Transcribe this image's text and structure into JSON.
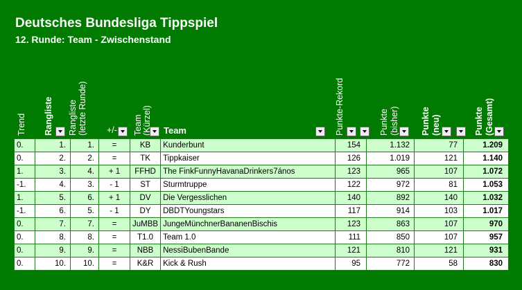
{
  "title": "Deutsches Bundesliga Tippspiel",
  "subtitle": "12. Runde: Team - Zwischenstand",
  "headers": {
    "trend": "Trend",
    "rangliste": "Rangliste",
    "rangliste_letzte_1": "Rangliste",
    "rangliste_letzte_2": "(letzte Runde)",
    "plusminus": "+/-",
    "team_kurz_1": "Team",
    "team_kurz_2": "(Kürzel)",
    "team": "Team",
    "rekord": "Punkte-Rekord",
    "punkte_bisher_1": "Punkte",
    "punkte_bisher_2": "(bisher)",
    "punkte_neu_1": "Punkte",
    "punkte_neu_2": "(neu)",
    "punkte_gesamt_1": "Punkte",
    "punkte_gesamt_2": "(Gesamt)"
  },
  "rows": [
    {
      "trend": "0.",
      "rang": "1.",
      "rang_alt": "1.",
      "diff": "=",
      "kurz": "KB",
      "team": "Kunderbunt",
      "rekord": "154",
      "bisher": "1.132",
      "neu": "77",
      "gesamt": "1.209"
    },
    {
      "trend": "0.",
      "rang": "2.",
      "rang_alt": "2.",
      "diff": "=",
      "kurz": "TK",
      "team": "Tippkaiser",
      "rekord": "126",
      "bisher": "1.019",
      "neu": "121",
      "gesamt": "1.140"
    },
    {
      "trend": "1.",
      "rang": "3.",
      "rang_alt": "4.",
      "diff": "+ 1",
      "kurz": "FFHD",
      "team": "The FinkFunnyHavanaDrinkers7ános",
      "rekord": "123",
      "bisher": "965",
      "neu": "107",
      "gesamt": "1.072"
    },
    {
      "trend": "-1.",
      "rang": "4.",
      "rang_alt": "3.",
      "diff": "- 1",
      "kurz": "ST",
      "team": "Sturmtruppe",
      "rekord": "122",
      "bisher": "972",
      "neu": "81",
      "gesamt": "1.053"
    },
    {
      "trend": "1.",
      "rang": "5.",
      "rang_alt": "6.",
      "diff": "+ 1",
      "kurz": "DV",
      "team": "Die Vergesslichen",
      "rekord": "140",
      "bisher": "892",
      "neu": "140",
      "gesamt": "1.032"
    },
    {
      "trend": "-1.",
      "rang": "6.",
      "rang_alt": "5.",
      "diff": "- 1",
      "kurz": "DY",
      "team": "DBDTYoungstars",
      "rekord": "117",
      "bisher": "914",
      "neu": "103",
      "gesamt": "1.017"
    },
    {
      "trend": "0.",
      "rang": "7.",
      "rang_alt": "7.",
      "diff": "=",
      "kurz": "JuMBB",
      "team": "JungeMünchnerBananenBischis",
      "rekord": "123",
      "bisher": "863",
      "neu": "107",
      "gesamt": "970"
    },
    {
      "trend": "0.",
      "rang": "8.",
      "rang_alt": "8.",
      "diff": "=",
      "kurz": "T1.0",
      "team": "Team 1.0",
      "rekord": "111",
      "bisher": "850",
      "neu": "107",
      "gesamt": "957"
    },
    {
      "trend": "0.",
      "rang": "9.",
      "rang_alt": "9.",
      "diff": "=",
      "kurz": "NBB",
      "team": "NessiBubenBande",
      "rekord": "121",
      "bisher": "810",
      "neu": "121",
      "gesamt": "931"
    },
    {
      "trend": "0.",
      "rang": "10.",
      "rang_alt": "10.",
      "diff": "=",
      "kurz": "K&R",
      "team": "Kick & Rush",
      "rekord": "95",
      "bisher": "772",
      "neu": "58",
      "gesamt": "830"
    }
  ]
}
